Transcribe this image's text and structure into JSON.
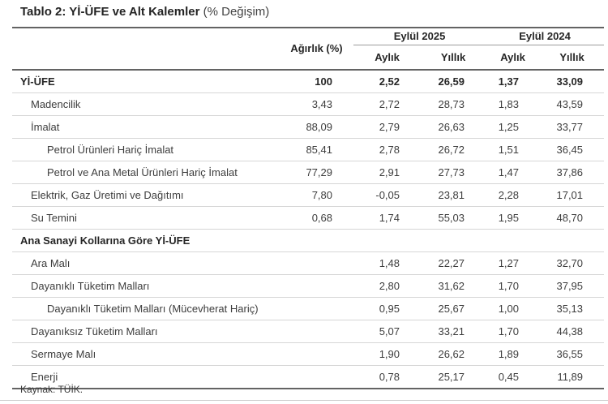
{
  "title": {
    "bold_part": "Tablo 2: Yİ-ÜFE ve Alt Kalemler",
    "normal_part": " (% Değişim)"
  },
  "table": {
    "col_headers": {
      "weight": "Ağırlık (%)",
      "groups": [
        {
          "label": "Eylül 2025",
          "sub": [
            "Aylık",
            "Yıllık"
          ]
        },
        {
          "label": "Eylül 2024",
          "sub": [
            "Aylık",
            "Yıllık"
          ]
        }
      ]
    },
    "rows": [
      {
        "label": "Yİ-ÜFE",
        "indent": 0,
        "bold": true,
        "section": false,
        "weight": "100",
        "values": [
          "2,52",
          "26,59",
          "1,37",
          "33,09"
        ]
      },
      {
        "label": "Madencilik",
        "indent": 1,
        "bold": false,
        "section": false,
        "weight": "3,43",
        "values": [
          "2,72",
          "28,73",
          "1,83",
          "43,59"
        ]
      },
      {
        "label": "İmalat",
        "indent": 1,
        "bold": false,
        "section": false,
        "weight": "88,09",
        "values": [
          "2,79",
          "26,63",
          "1,25",
          "33,77"
        ]
      },
      {
        "label": "Petrol Ürünleri Hariç İmalat",
        "indent": 2,
        "bold": false,
        "section": false,
        "weight": "85,41",
        "values": [
          "2,78",
          "26,72",
          "1,51",
          "36,45"
        ]
      },
      {
        "label": "Petrol ve Ana Metal Ürünleri Hariç İmalat",
        "indent": 2,
        "bold": false,
        "section": false,
        "weight": "77,29",
        "values": [
          "2,91",
          "27,73",
          "1,47",
          "37,86"
        ]
      },
      {
        "label": "Elektrik, Gaz Üretimi ve Dağıtımı",
        "indent": 1,
        "bold": false,
        "section": false,
        "weight": "7,80",
        "values": [
          "-0,05",
          "23,81",
          "2,28",
          "17,01"
        ]
      },
      {
        "label": "Su Temini",
        "indent": 1,
        "bold": false,
        "section": false,
        "weight": "0,68",
        "values": [
          "1,74",
          "55,03",
          "1,95",
          "48,70"
        ]
      },
      {
        "label": "Ana Sanayi Kollarına Göre Yİ-ÜFE",
        "indent": 0,
        "bold": true,
        "section": true,
        "weight": "",
        "values": [
          "",
          "",
          "",
          ""
        ]
      },
      {
        "label": "Ara Malı",
        "indent": 1,
        "bold": false,
        "section": false,
        "weight": "",
        "values": [
          "1,48",
          "22,27",
          "1,27",
          "32,70"
        ]
      },
      {
        "label": "Dayanıklı Tüketim Malları",
        "indent": 1,
        "bold": false,
        "section": false,
        "weight": "",
        "values": [
          "2,80",
          "31,62",
          "1,70",
          "37,95"
        ]
      },
      {
        "label": "Dayanıklı Tüketim Malları (Mücevherat Hariç)",
        "indent": 2,
        "bold": false,
        "section": false,
        "weight": "",
        "values": [
          "0,95",
          "25,67",
          "1,00",
          "35,13"
        ]
      },
      {
        "label": "Dayanıksız Tüketim Malları",
        "indent": 1,
        "bold": false,
        "section": false,
        "weight": "",
        "values": [
          "5,07",
          "33,21",
          "1,70",
          "44,38"
        ]
      },
      {
        "label": "Sermaye Malı",
        "indent": 1,
        "bold": false,
        "section": false,
        "weight": "",
        "values": [
          "1,90",
          "26,62",
          "1,89",
          "36,55"
        ]
      },
      {
        "label": "Enerji",
        "indent": 1,
        "bold": false,
        "section": false,
        "weight": "",
        "values": [
          "0,78",
          "25,17",
          "0,45",
          "11,89"
        ]
      }
    ]
  },
  "footer": {
    "source": "Kaynak: TÜİK."
  },
  "colors": {
    "background": "#ffffff",
    "text": "#3d3d3d",
    "bold_text": "#262626",
    "dark_border": "#636363",
    "light_separator": "#d6d6d6",
    "group_underline": "#9c9c9c",
    "page_bottom_rule": "#cccccc"
  }
}
